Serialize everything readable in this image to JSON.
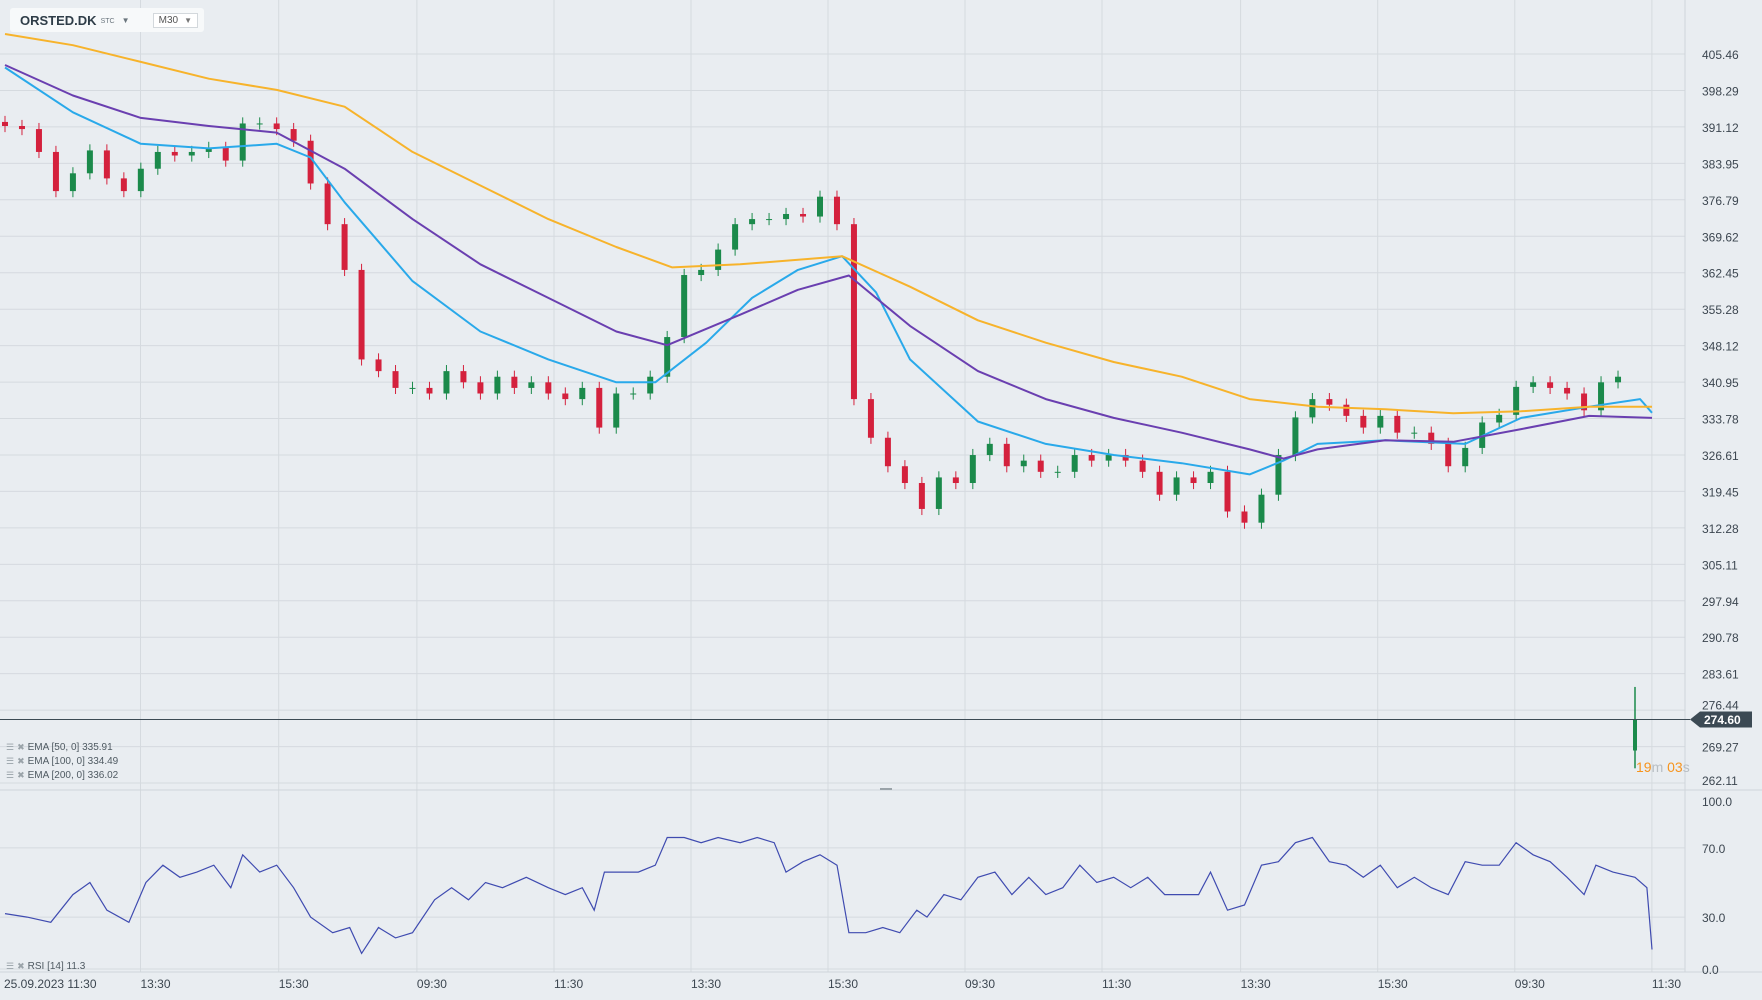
{
  "header": {
    "symbol": "ORSTED.DK",
    "exchange": "STC",
    "timeframe": "M30"
  },
  "legend": {
    "ema": [
      {
        "label": "EMA [50, 0] 335.91",
        "color": "#29a9ea"
      },
      {
        "label": "EMA [100, 0] 334.49",
        "color": "#6a3fb0"
      },
      {
        "label": "EMA [200, 0] 336.02",
        "color": "#f7b32b"
      }
    ],
    "rsi": {
      "label": "RSI [14] 11.3",
      "color": "#3f4bb0"
    }
  },
  "countdown": {
    "minutes": "19",
    "m": "m",
    "seconds": "03",
    "s": "s"
  },
  "colors": {
    "up": "#1b8a4b",
    "down": "#d4213d",
    "background": "#e9edf1",
    "grid": "#d5dadf",
    "price_tag": "#3c4a54"
  },
  "chart_data": {
    "type": "candlestick",
    "price_axis": {
      "ticks": [
        "405.46",
        "398.29",
        "391.12",
        "383.95",
        "376.79",
        "369.62",
        "362.45",
        "355.28",
        "348.12",
        "340.95",
        "333.78",
        "326.61",
        "319.45",
        "312.28",
        "305.11",
        "297.94",
        "290.78",
        "283.61",
        "276.44",
        "269.27",
        "262.11"
      ],
      "range": [
        262.11,
        405.46
      ]
    },
    "current_price": "274.60",
    "time_axis": {
      "labels": [
        "25.09.2023  11:30",
        "13:30",
        "15:30",
        "09:30",
        "11:30",
        "13:30",
        "15:30",
        "09:30",
        "11:30",
        "13:30",
        "15:30",
        "09:30",
        "11:30"
      ]
    },
    "closes": [
      391.3,
      390.7,
      386.2,
      378.5,
      382.0,
      386.5,
      381.0,
      378.5,
      382.9,
      386.2,
      385.5,
      386.2,
      387.0,
      384.5,
      391.8,
      391.8,
      390.7,
      388.4,
      380.0,
      372.0,
      363.0,
      345.4,
      343.1,
      339.8,
      339.8,
      338.7,
      343.1,
      340.9,
      338.7,
      342.0,
      339.8,
      340.9,
      338.7,
      337.6,
      339.8,
      332.0,
      338.7,
      338.7,
      342.0,
      349.8,
      362.0,
      363.0,
      367.0,
      372.0,
      373.0,
      373.0,
      374.0,
      373.5,
      377.4,
      372.0,
      337.6,
      330.0,
      324.4,
      321.1,
      316.0,
      322.2,
      321.1,
      326.6,
      328.8,
      324.4,
      325.5,
      323.3,
      323.3,
      326.6,
      325.5,
      326.6,
      325.5,
      323.3,
      318.8,
      322.2,
      321.1,
      323.3,
      315.5,
      313.3,
      318.8,
      326.6,
      334.0,
      337.6,
      336.5,
      334.3,
      332.0,
      334.3,
      331.0,
      331.0,
      328.8,
      324.4,
      328.0,
      333.0,
      334.5,
      340.0,
      340.9,
      339.8,
      338.7,
      335.4,
      340.9,
      342.0,
      339.8
    ],
    "last_bar": {
      "open": 268.5,
      "high": 281.0,
      "low": 265.0,
      "close": 274.6
    },
    "series": [
      {
        "name": "EMA [50, 0]",
        "color": "#29a9ea",
        "points": [
          [
            0,
            402.8
          ],
          [
            4,
            394.0
          ],
          [
            8,
            387.8
          ],
          [
            12,
            386.9
          ],
          [
            16,
            387.8
          ],
          [
            18,
            385.1
          ],
          [
            20,
            376.3
          ],
          [
            24,
            360.8
          ],
          [
            28,
            350.9
          ],
          [
            32,
            345.4
          ],
          [
            36,
            340.9
          ],
          [
            38.3,
            340.9
          ],
          [
            41.3,
            348.7
          ],
          [
            44,
            357.5
          ],
          [
            46.7,
            363.0
          ],
          [
            49.3,
            365.7
          ],
          [
            51.3,
            358.6
          ],
          [
            53.3,
            345.4
          ],
          [
            57.3,
            333.2
          ],
          [
            61.3,
            328.8
          ],
          [
            65.3,
            326.6
          ],
          [
            69.3,
            325.0
          ],
          [
            73.3,
            322.8
          ],
          [
            75.3,
            325.5
          ],
          [
            77.3,
            328.8
          ],
          [
            81.3,
            329.5
          ],
          [
            86,
            328.8
          ],
          [
            89.3,
            333.9
          ],
          [
            93.3,
            336.1
          ],
          [
            96.3,
            337.6
          ],
          [
            97,
            334.9
          ]
        ]
      },
      {
        "name": "EMA [100, 0]",
        "color": "#6a3fb0",
        "points": [
          [
            0,
            403.3
          ],
          [
            4,
            397.3
          ],
          [
            8,
            392.9
          ],
          [
            12,
            391.3
          ],
          [
            16,
            390.0
          ],
          [
            20,
            382.9
          ],
          [
            24,
            373.0
          ],
          [
            28,
            364.1
          ],
          [
            32,
            357.5
          ],
          [
            36,
            350.9
          ],
          [
            39,
            348.2
          ],
          [
            43.3,
            354.2
          ],
          [
            46.7,
            359.1
          ],
          [
            49.7,
            361.9
          ],
          [
            53.3,
            352.0
          ],
          [
            57.3,
            343.1
          ],
          [
            61.3,
            337.6
          ],
          [
            65.3,
            333.9
          ],
          [
            69.3,
            331.0
          ],
          [
            73.3,
            327.7
          ],
          [
            75.3,
            325.9
          ],
          [
            77.3,
            327.7
          ],
          [
            81.3,
            329.5
          ],
          [
            85.3,
            329.2
          ],
          [
            89.3,
            331.7
          ],
          [
            93.3,
            334.3
          ],
          [
            97,
            333.9
          ]
        ]
      },
      {
        "name": "EMA [200, 0]",
        "color": "#f7b32b",
        "points": [
          [
            0,
            409.4
          ],
          [
            4,
            407.2
          ],
          [
            8,
            403.9
          ],
          [
            12,
            400.6
          ],
          [
            16,
            398.4
          ],
          [
            20,
            395.1
          ],
          [
            24,
            386.2
          ],
          [
            28,
            379.6
          ],
          [
            32,
            373.0
          ],
          [
            36,
            367.5
          ],
          [
            39.3,
            363.5
          ],
          [
            43.3,
            364.1
          ],
          [
            49.3,
            365.7
          ],
          [
            53.3,
            359.7
          ],
          [
            57.3,
            353.1
          ],
          [
            61.3,
            348.7
          ],
          [
            65.3,
            344.9
          ],
          [
            69.3,
            342.0
          ],
          [
            73.3,
            337.6
          ],
          [
            77.3,
            336.1
          ],
          [
            81.3,
            335.6
          ],
          [
            85.3,
            334.8
          ],
          [
            89.3,
            335.2
          ],
          [
            93.3,
            336.1
          ],
          [
            97,
            336.1
          ]
        ]
      }
    ],
    "rsi": {
      "name": "RSI [14]",
      "ticks": [
        "100.0",
        "70.0",
        "30.0",
        "0.0"
      ],
      "range": [
        0,
        100
      ],
      "levels": [
        70,
        30
      ],
      "points": [
        [
          0,
          32
        ],
        [
          1.3,
          30
        ],
        [
          2.7,
          27
        ],
        [
          4,
          43
        ],
        [
          5,
          50
        ],
        [
          6,
          34
        ],
        [
          7.3,
          27
        ],
        [
          8.3,
          50
        ],
        [
          9.3,
          60
        ],
        [
          10.3,
          53
        ],
        [
          11.3,
          56
        ],
        [
          12.3,
          60
        ],
        [
          13.3,
          47
        ],
        [
          14,
          66
        ],
        [
          15,
          56
        ],
        [
          16,
          60
        ],
        [
          17,
          47
        ],
        [
          18,
          30
        ],
        [
          19.3,
          21
        ],
        [
          20.3,
          24
        ],
        [
          21,
          9
        ],
        [
          22,
          24
        ],
        [
          23,
          18
        ],
        [
          24,
          21
        ],
        [
          25.3,
          40
        ],
        [
          26.3,
          47
        ],
        [
          27.3,
          40
        ],
        [
          28.3,
          50
        ],
        [
          29.3,
          47
        ],
        [
          30.7,
          53
        ],
        [
          32,
          47
        ],
        [
          33,
          43
        ],
        [
          34,
          47
        ],
        [
          34.7,
          34
        ],
        [
          35.3,
          56
        ],
        [
          36.3,
          56
        ],
        [
          37.3,
          56
        ],
        [
          38.3,
          60
        ],
        [
          39,
          76
        ],
        [
          40,
          76
        ],
        [
          41,
          73
        ],
        [
          42,
          76
        ],
        [
          43.3,
          73
        ],
        [
          44.3,
          76
        ],
        [
          45.3,
          73
        ],
        [
          46,
          56
        ],
        [
          47,
          62
        ],
        [
          48,
          66
        ],
        [
          49,
          60
        ],
        [
          49.7,
          21
        ],
        [
          50.7,
          21
        ],
        [
          51.7,
          24
        ],
        [
          52.7,
          21
        ],
        [
          53.7,
          34
        ],
        [
          54.3,
          30
        ],
        [
          55.3,
          43
        ],
        [
          56.3,
          40
        ],
        [
          57.3,
          53
        ],
        [
          58.3,
          56
        ],
        [
          59.3,
          43
        ],
        [
          60.3,
          53
        ],
        [
          61.3,
          43
        ],
        [
          62.3,
          47
        ],
        [
          63.3,
          60
        ],
        [
          64.3,
          50
        ],
        [
          65.3,
          53
        ],
        [
          66.3,
          47
        ],
        [
          67.3,
          53
        ],
        [
          68.3,
          43
        ],
        [
          69.3,
          43
        ],
        [
          70.3,
          43
        ],
        [
          71,
          56
        ],
        [
          72,
          34
        ],
        [
          73,
          37
        ],
        [
          74,
          60
        ],
        [
          75,
          62
        ],
        [
          76,
          73
        ],
        [
          77,
          76
        ],
        [
          78,
          62
        ],
        [
          79,
          60
        ],
        [
          80,
          53
        ],
        [
          81,
          60
        ],
        [
          82,
          47
        ],
        [
          83,
          53
        ],
        [
          84,
          47
        ],
        [
          85,
          43
        ],
        [
          86,
          62
        ],
        [
          87,
          60
        ],
        [
          88,
          60
        ],
        [
          89,
          73
        ],
        [
          90,
          66
        ],
        [
          91,
          62
        ],
        [
          92,
          53
        ],
        [
          93,
          43
        ],
        [
          93.7,
          60
        ],
        [
          94.7,
          56
        ],
        [
          96,
          53
        ],
        [
          96.7,
          47
        ],
        [
          97,
          11.3
        ]
      ]
    }
  }
}
